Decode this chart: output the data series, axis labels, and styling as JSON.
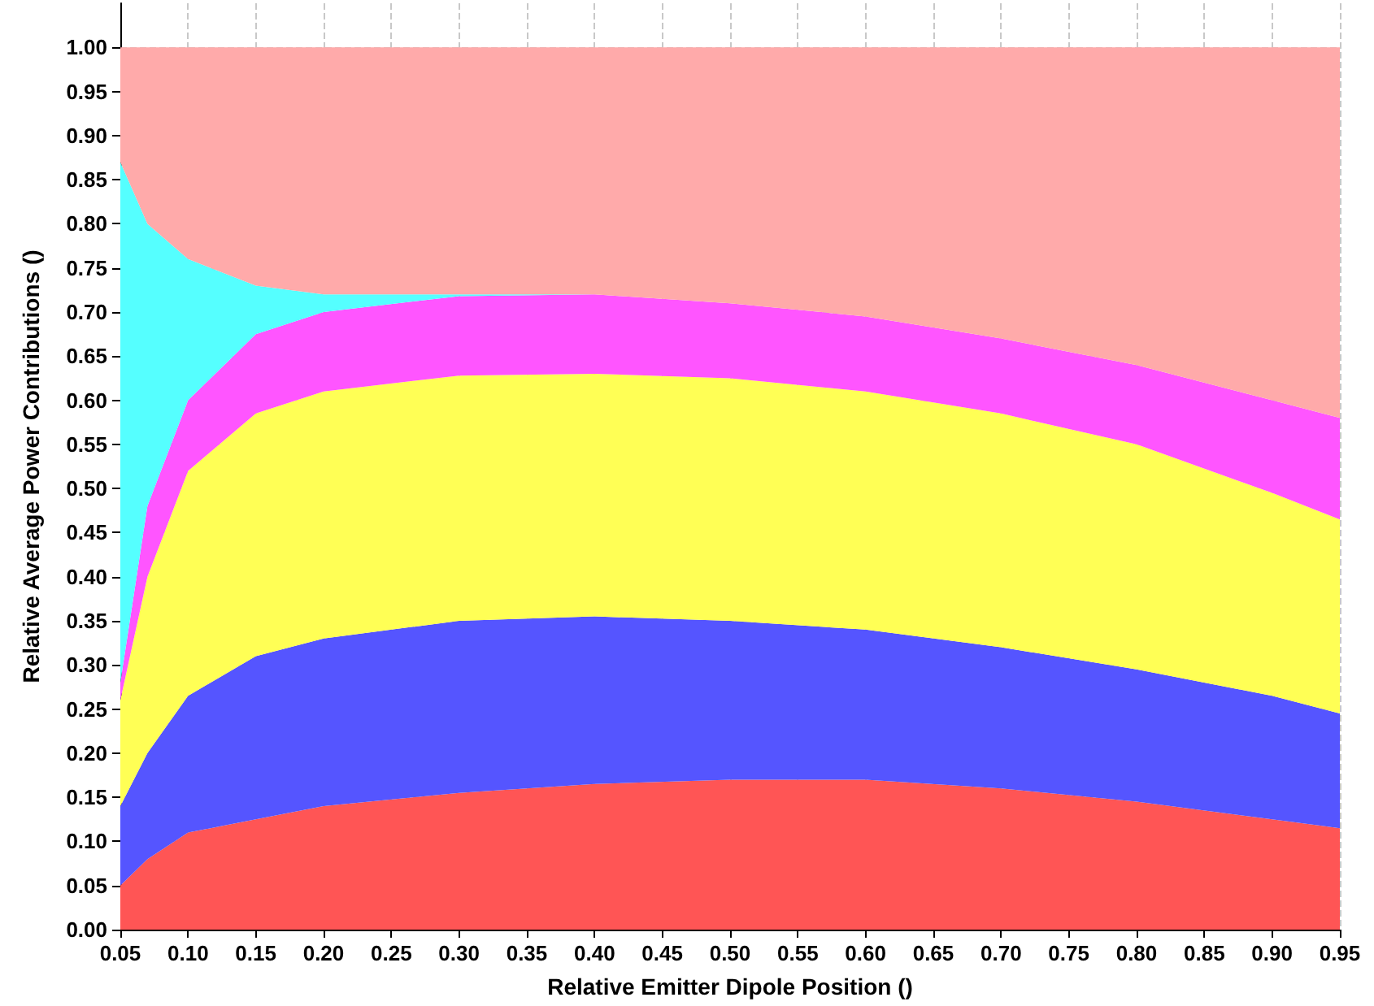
{
  "chart_data": {
    "type": "area",
    "stacked": true,
    "xlabel": "Relative Emitter Dipole Position ()",
    "ylabel": "Relative Average Power Contributions ()",
    "x": [
      0.05,
      0.07,
      0.1,
      0.15,
      0.2,
      0.3,
      0.4,
      0.5,
      0.6,
      0.7,
      0.8,
      0.9,
      0.95
    ],
    "series": [
      {
        "color": "#ff5555",
        "values": [
          0.05,
          0.08,
          0.11,
          0.125,
          0.14,
          0.155,
          0.165,
          0.17,
          0.17,
          0.16,
          0.145,
          0.125,
          0.115
        ]
      },
      {
        "color": "#5555ff",
        "values": [
          0.09,
          0.12,
          0.155,
          0.185,
          0.19,
          0.195,
          0.19,
          0.18,
          0.17,
          0.16,
          0.15,
          0.14,
          0.13
        ]
      },
      {
        "color": "#ffff55",
        "values": [
          0.12,
          0.2,
          0.255,
          0.275,
          0.28,
          0.278,
          0.275,
          0.275,
          0.27,
          0.265,
          0.255,
          0.23,
          0.22
        ]
      },
      {
        "color": "#ff55ff",
        "values": [
          0.02,
          0.08,
          0.08,
          0.09,
          0.09,
          0.09,
          0.09,
          0.085,
          0.085,
          0.085,
          0.09,
          0.105,
          0.115
        ]
      },
      {
        "color": "#55ffff",
        "values": [
          0.59,
          0.32,
          0.16,
          0.055,
          0.02,
          0.002,
          0,
          0,
          0,
          0,
          0,
          0,
          0
        ]
      },
      {
        "color": "#ffaaaa",
        "values": [
          0.13,
          0.2,
          0.24,
          0.27,
          0.28,
          0.28,
          0.28,
          0.29,
          0.305,
          0.33,
          0.36,
          0.4,
          0.42
        ]
      }
    ],
    "xlim": [
      0.05,
      0.95
    ],
    "xticks": [
      {
        "value": 0.05,
        "label": "0.05"
      },
      {
        "value": 0.1,
        "label": "0.10"
      },
      {
        "value": 0.15,
        "label": "0.15"
      },
      {
        "value": 0.2,
        "label": "0.20"
      },
      {
        "value": 0.25,
        "label": "0.25"
      },
      {
        "value": 0.3,
        "label": "0.30"
      },
      {
        "value": 0.35,
        "label": "0.35"
      },
      {
        "value": 0.4,
        "label": "0.40"
      },
      {
        "value": 0.45,
        "label": "0.45"
      },
      {
        "value": 0.5,
        "label": "0.50"
      },
      {
        "value": 0.55,
        "label": "0.55"
      },
      {
        "value": 0.6,
        "label": "0.60"
      },
      {
        "value": 0.65,
        "label": "0.65"
      },
      {
        "value": 0.7,
        "label": "0.70"
      },
      {
        "value": 0.75,
        "label": "0.75"
      },
      {
        "value": 0.8,
        "label": "0.80"
      },
      {
        "value": 0.85,
        "label": "0.85"
      },
      {
        "value": 0.9,
        "label": "0.90"
      },
      {
        "value": 0.95,
        "label": "0.95"
      }
    ],
    "ylim": [
      0,
      1.05
    ],
    "yticks": [
      {
        "value": 0,
        "label": "0.00"
      },
      {
        "value": 0.05,
        "label": "0.05"
      },
      {
        "value": 0.1,
        "label": "0.10"
      },
      {
        "value": 0.15,
        "label": "0.15"
      },
      {
        "value": 0.2,
        "label": "0.20"
      },
      {
        "value": 0.25,
        "label": "0.25"
      },
      {
        "value": 0.3,
        "label": "0.30"
      },
      {
        "value": 0.35,
        "label": "0.35"
      },
      {
        "value": 0.4,
        "label": "0.40"
      },
      {
        "value": 0.45,
        "label": "0.45"
      },
      {
        "value": 0.5,
        "label": "0.50"
      },
      {
        "value": 0.55,
        "label": "0.55"
      },
      {
        "value": 0.6,
        "label": "0.60"
      },
      {
        "value": 0.65,
        "label": "0.65"
      },
      {
        "value": 0.7,
        "label": "0.70"
      },
      {
        "value": 0.75,
        "label": "0.75"
      },
      {
        "value": 0.8,
        "label": "0.80"
      },
      {
        "value": 0.85,
        "label": "0.85"
      },
      {
        "value": 0.9,
        "label": "0.90"
      },
      {
        "value": 0.95,
        "label": "0.95"
      },
      {
        "value": 1,
        "label": "1.00"
      }
    ],
    "grid": true
  }
}
